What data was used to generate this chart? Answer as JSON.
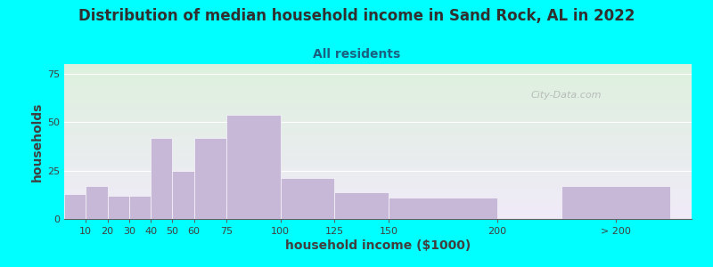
{
  "title": "Distribution of median household income in Sand Rock, AL in 2022",
  "subtitle": "All residents",
  "xlabel": "household income ($1000)",
  "ylabel": "households",
  "bar_values": [
    13,
    17,
    12,
    12,
    42,
    25,
    42,
    54,
    21,
    14,
    11,
    17
  ],
  "bar_color": "#c8b8d8",
  "background_outer": "#00ffff",
  "yticks": [
    0,
    25,
    50,
    75
  ],
  "ylim": [
    0,
    80
  ],
  "title_fontsize": 12,
  "subtitle_fontsize": 10,
  "title_color": "#303030",
  "subtitle_color": "#1a6080",
  "axis_label_fontsize": 10,
  "tick_fontsize": 8,
  "watermark_text": "City-Data.com",
  "bar_lefts": [
    0,
    10,
    20,
    30,
    40,
    50,
    60,
    75,
    100,
    125,
    150,
    230
  ],
  "bar_widths": [
    10,
    10,
    10,
    10,
    10,
    10,
    15,
    25,
    25,
    25,
    50,
    50
  ],
  "tick_positions": [
    10,
    20,
    30,
    40,
    50,
    60,
    75,
    100,
    125,
    150,
    200,
    255
  ],
  "tick_labels": [
    "10",
    "20",
    "30",
    "40",
    "50",
    "60",
    "75",
    "100",
    "125",
    "150",
    "200",
    "> 200"
  ],
  "xlim": [
    0,
    290
  ],
  "plot_bg_color_top": "#ddf0dd",
  "plot_bg_color_bottom": "#f0eaf8"
}
